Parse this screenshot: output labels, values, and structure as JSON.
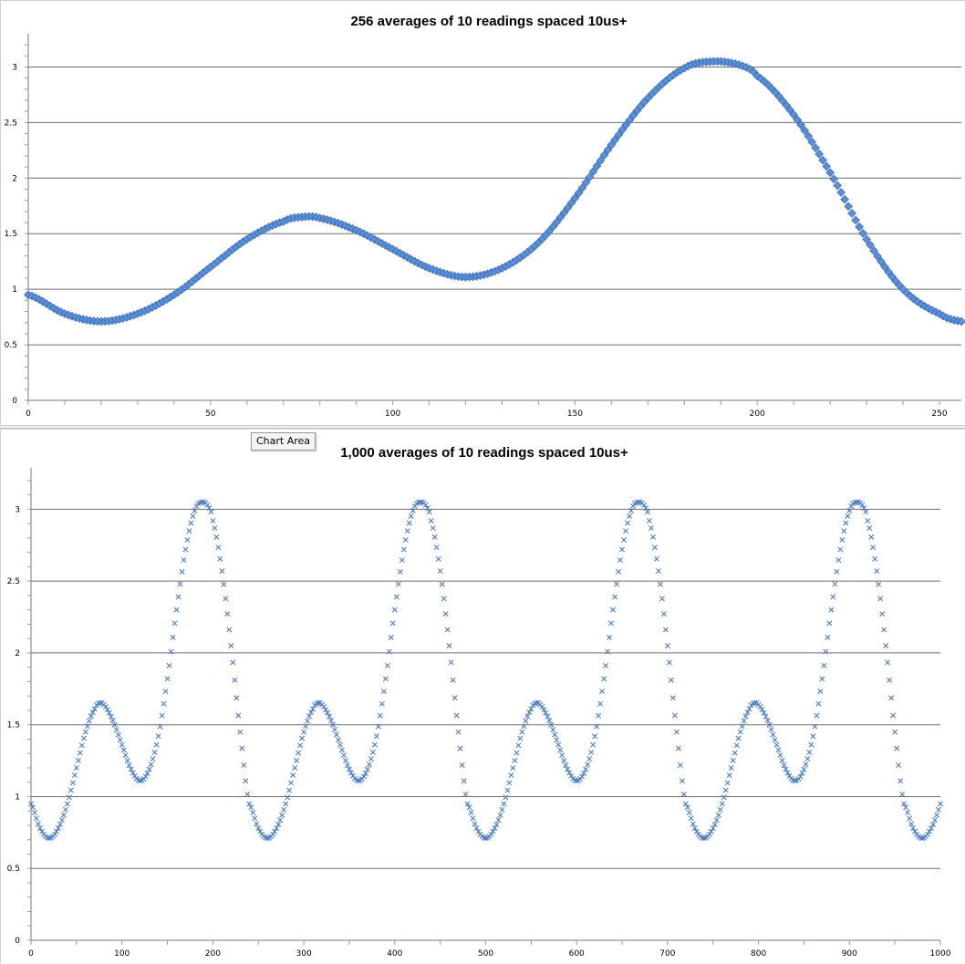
{
  "tooltip": {
    "text": "Chart Area"
  },
  "chart_data": [
    {
      "type": "scatter",
      "title": "256 averages of 10 readings spaced 10us+",
      "xlabel": "",
      "ylabel": "",
      "xlim": [
        0,
        256
      ],
      "ylim": [
        0,
        3.25
      ],
      "x_ticks": [
        0,
        50,
        100,
        150,
        200,
        250
      ],
      "x_tick_labels": [
        "0",
        "50",
        "100",
        "150",
        "200",
        "250"
      ],
      "y_ticks": [
        0,
        0.5,
        1,
        1.5,
        2,
        2.5,
        3
      ],
      "y_tick_labels": [
        "0",
        "0.5",
        "1",
        "1.5",
        "2",
        "2.5",
        "3"
      ],
      "grid": "horizontal",
      "marker": "diamond",
      "marker_color": "#5b8fd6",
      "marker_stroke": "#3a6fb8",
      "series": [
        {
          "x": [
            0,
            10,
            20,
            30,
            40,
            50,
            60,
            70,
            75,
            80,
            90,
            100,
            110,
            120,
            130,
            140,
            150,
            160,
            170,
            180,
            188,
            195,
            200,
            210,
            220,
            230,
            240,
            250,
            256
          ],
          "y": [
            0.95,
            0.78,
            0.71,
            0.78,
            0.95,
            1.2,
            1.45,
            1.61,
            1.65,
            1.64,
            1.53,
            1.36,
            1.19,
            1.11,
            1.19,
            1.42,
            1.82,
            2.3,
            2.72,
            2.99,
            3.05,
            3.02,
            2.92,
            2.57,
            2.05,
            1.45,
            1.0,
            0.78,
            0.71
          ]
        }
      ]
    },
    {
      "type": "scatter",
      "title": "1,000 averages of 10 readings spaced 10us+",
      "xlabel": "",
      "ylabel": "",
      "xlim": [
        0,
        1000
      ],
      "ylim": [
        0,
        3.25
      ],
      "x_ticks": [
        0,
        100,
        200,
        300,
        400,
        500,
        600,
        700,
        800,
        900,
        1000
      ],
      "x_tick_labels": [
        "0",
        "100",
        "200",
        "300",
        "400",
        "500",
        "600",
        "700",
        "800",
        "900",
        "1000"
      ],
      "y_ticks": [
        0,
        0.5,
        1,
        1.5,
        2,
        2.5,
        3
      ],
      "y_tick_labels": [
        "0",
        "0.5",
        "1",
        "1.5",
        "2",
        "2.5",
        "3"
      ],
      "grid": "horizontal",
      "marker": "x",
      "marker_color": "#4a7cc4",
      "series": [
        {
          "period": 240,
          "x": [
            0,
            10,
            20,
            30,
            40,
            50,
            60,
            70,
            75,
            80,
            90,
            100,
            110,
            120,
            130,
            140,
            150,
            160,
            170,
            180,
            188,
            195,
            200,
            210,
            220,
            230,
            240
          ],
          "y": [
            0.95,
            0.78,
            0.71,
            0.78,
            0.95,
            1.2,
            1.45,
            1.61,
            1.65,
            1.64,
            1.53,
            1.36,
            1.19,
            1.11,
            1.19,
            1.42,
            1.82,
            2.3,
            2.72,
            2.99,
            3.05,
            3.02,
            2.92,
            2.57,
            2.05,
            1.45,
            0.95
          ]
        }
      ]
    }
  ]
}
